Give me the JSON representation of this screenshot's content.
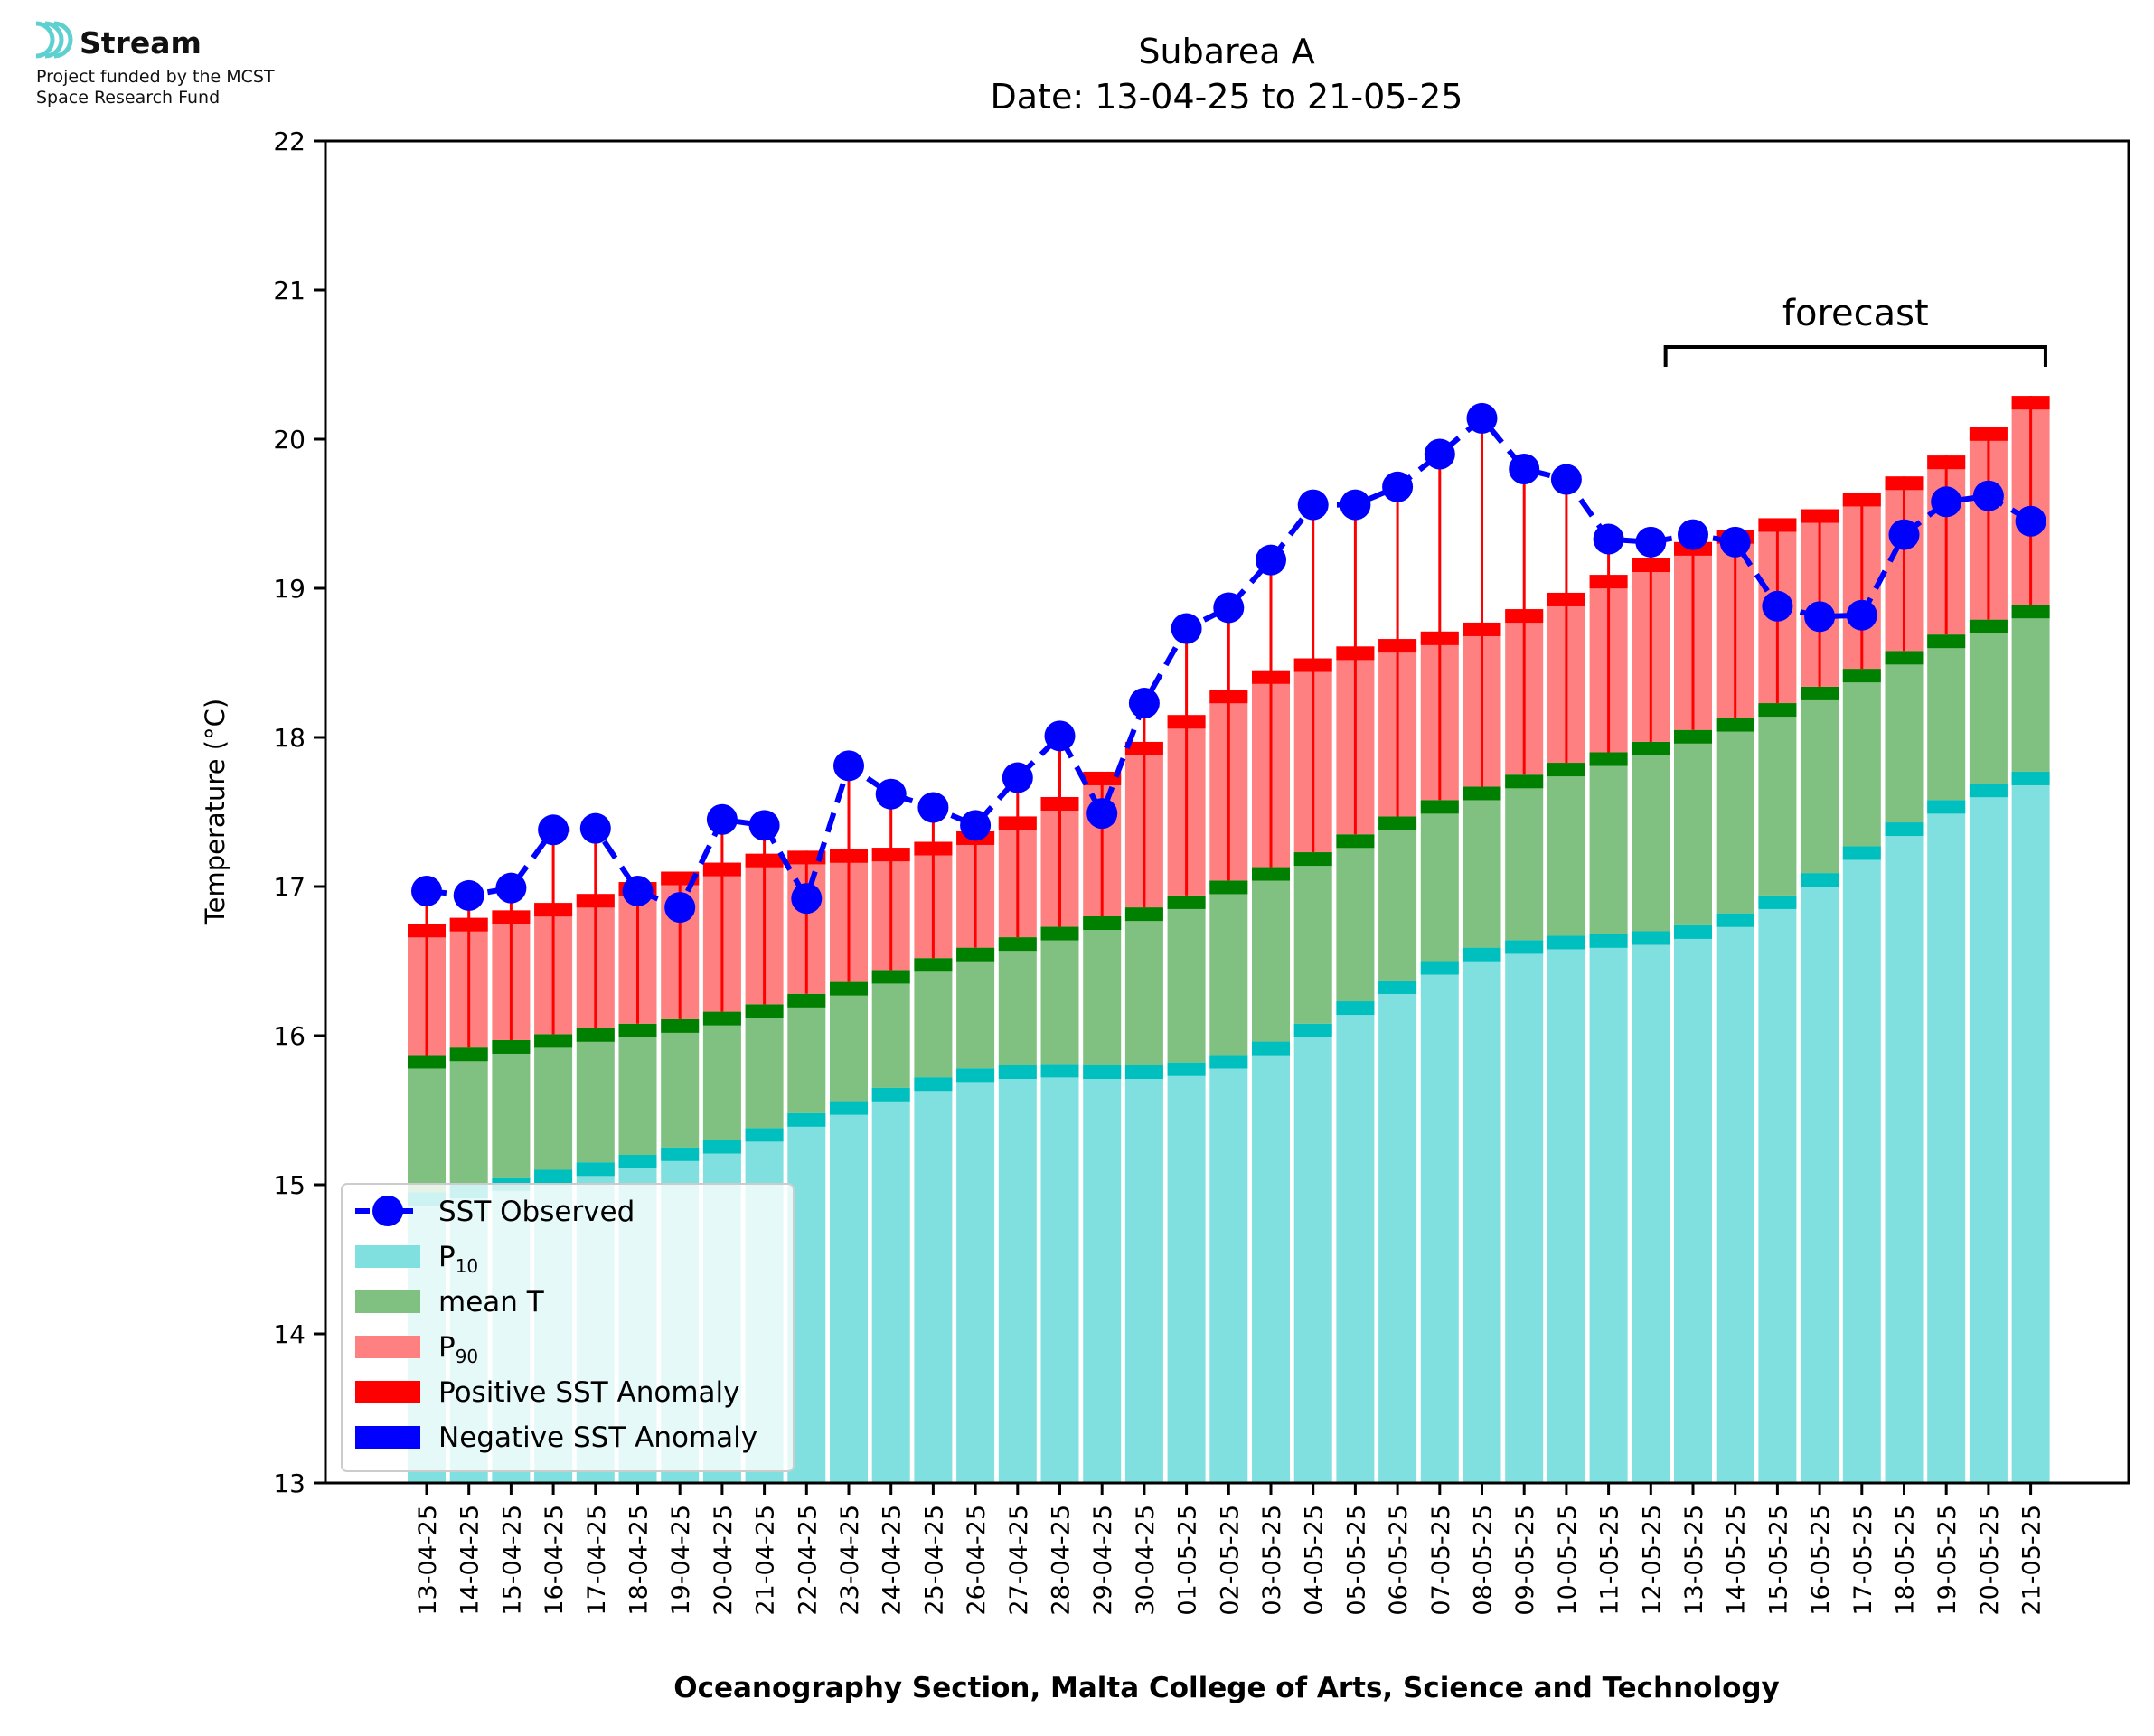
{
  "logo": {
    "name": "Stream",
    "tagline_line1": "Project funded by the MCST",
    "tagline_line2": "Space Research Fund"
  },
  "chart_data": {
    "type": "bar",
    "title": "Subarea A",
    "subtitle": "Date: 13-04-25 to 21-05-25",
    "xlabel": "Oceanography Section, Malta College of Arts, Science and Technology",
    "ylabel": "Temperature (°C)",
    "ylim": [
      13,
      22
    ],
    "yticks": [
      13,
      14,
      15,
      16,
      17,
      18,
      19,
      20,
      21,
      22
    ],
    "annotation": "forecast",
    "forecast_range": [
      "13-05-25",
      "21-05-25"
    ],
    "legend_position": "lower-left",
    "legend": [
      {
        "label": "SST Observed",
        "kind": "line-marker",
        "color": "#0000ff"
      },
      {
        "label": "P",
        "sub": "10",
        "kind": "patch",
        "color": "#80dfdf"
      },
      {
        "label": "mean T",
        "kind": "patch",
        "color": "#80c080"
      },
      {
        "label": "P",
        "sub": "90",
        "kind": "patch",
        "color": "#ff8080"
      },
      {
        "label": "Positive SST Anomaly",
        "kind": "patch",
        "color": "#ff0000"
      },
      {
        "label": "Negative SST Anomaly",
        "kind": "patch",
        "color": "#0000ff"
      }
    ],
    "colors": {
      "p10_fill": "#80dfdf",
      "p10_cap": "#00bfbf",
      "mean_fill": "#80c080",
      "mean_cap": "#008000",
      "p90_fill": "#ff8080",
      "p90_cap": "#ff0000",
      "anomaly_pos": "#ff0000",
      "anomaly_neg": "#0000ff",
      "observed": "#0000ff"
    },
    "categories": [
      "13-04-25",
      "14-04-25",
      "15-04-25",
      "16-04-25",
      "17-04-25",
      "18-04-25",
      "19-04-25",
      "20-04-25",
      "21-04-25",
      "22-04-25",
      "23-04-25",
      "24-04-25",
      "25-04-25",
      "26-04-25",
      "27-04-25",
      "28-04-25",
      "29-04-25",
      "30-04-25",
      "01-05-25",
      "02-05-25",
      "03-05-25",
      "04-05-25",
      "05-05-25",
      "06-05-25",
      "07-05-25",
      "08-05-25",
      "09-05-25",
      "10-05-25",
      "11-05-25",
      "12-05-25",
      "13-05-25",
      "14-05-25",
      "15-05-25",
      "16-05-25",
      "17-05-25",
      "18-05-25",
      "19-05-25",
      "20-05-25",
      "21-05-25"
    ],
    "series": [
      {
        "name": "P10",
        "values": [
          14.95,
          15.0,
          15.05,
          15.1,
          15.15,
          15.2,
          15.25,
          15.3,
          15.38,
          15.48,
          15.56,
          15.65,
          15.72,
          15.78,
          15.8,
          15.81,
          15.8,
          15.8,
          15.82,
          15.87,
          15.96,
          16.08,
          16.23,
          16.37,
          16.5,
          16.59,
          16.64,
          16.67,
          16.68,
          16.7,
          16.74,
          16.82,
          16.94,
          17.09,
          17.27,
          17.43,
          17.58,
          17.69,
          17.77
        ]
      },
      {
        "name": "mean T",
        "values": [
          15.87,
          15.92,
          15.97,
          16.01,
          16.05,
          16.08,
          16.11,
          16.16,
          16.21,
          16.28,
          16.36,
          16.44,
          16.52,
          16.59,
          16.66,
          16.73,
          16.8,
          16.86,
          16.94,
          17.04,
          17.13,
          17.23,
          17.35,
          17.47,
          17.58,
          17.67,
          17.75,
          17.83,
          17.9,
          17.97,
          18.05,
          18.13,
          18.23,
          18.34,
          18.46,
          18.58,
          18.69,
          18.79,
          18.89
        ]
      },
      {
        "name": "P90",
        "values": [
          16.75,
          16.79,
          16.84,
          16.89,
          16.95,
          17.03,
          17.1,
          17.16,
          17.22,
          17.24,
          17.25,
          17.26,
          17.3,
          17.37,
          17.47,
          17.6,
          17.77,
          17.97,
          18.15,
          18.32,
          18.45,
          18.53,
          18.61,
          18.66,
          18.71,
          18.77,
          18.86,
          18.97,
          19.09,
          19.2,
          19.31,
          19.39,
          19.47,
          19.53,
          19.64,
          19.75,
          19.89,
          20.08,
          20.29
        ]
      },
      {
        "name": "SST Observed",
        "values": [
          16.97,
          16.94,
          16.99,
          17.38,
          17.39,
          16.97,
          16.86,
          17.45,
          17.41,
          16.92,
          17.81,
          17.62,
          17.53,
          17.41,
          17.73,
          18.01,
          17.49,
          18.23,
          18.73,
          18.87,
          19.19,
          19.56,
          19.56,
          19.68,
          19.9,
          20.14,
          19.8,
          19.73,
          19.33,
          19.31,
          19.36,
          19.31,
          18.88,
          18.81,
          18.82,
          19.36,
          19.58,
          19.62,
          19.45
        ]
      }
    ]
  }
}
